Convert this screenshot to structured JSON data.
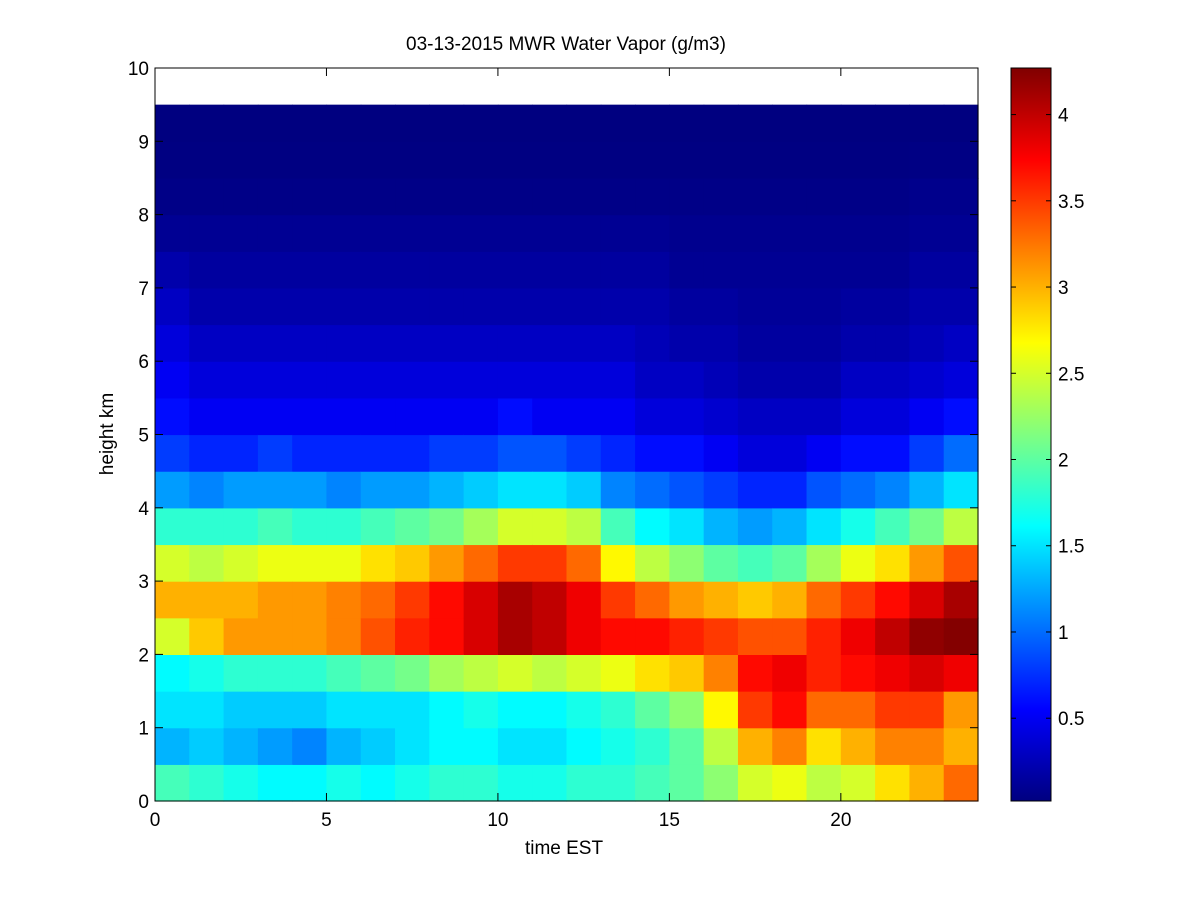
{
  "chart_data": {
    "type": "heatmap",
    "title": "03-13-2015 MWR Water Vapor (g/m3)",
    "xlabel": "time EST",
    "ylabel": "height km",
    "xlim": [
      0,
      24
    ],
    "ylim": [
      0,
      10
    ],
    "x_ticks": [
      0,
      5,
      10,
      15,
      20
    ],
    "y_ticks": [
      0,
      1,
      2,
      3,
      4,
      5,
      6,
      7,
      8,
      9,
      10
    ],
    "colorbar": {
      "colormap": "jet",
      "range": [
        0.02,
        4.27
      ],
      "ticks": [
        0.5,
        1,
        1.5,
        2,
        2.5,
        3,
        3.5,
        4
      ]
    },
    "grid": false,
    "time_hours": [
      0,
      1,
      2,
      3,
      4,
      5,
      6,
      7,
      8,
      9,
      10,
      11,
      12,
      13,
      14,
      15,
      16,
      17,
      18,
      19,
      20,
      21,
      22,
      23
    ],
    "heights_km": [
      0.25,
      0.75,
      1.25,
      1.75,
      2.25,
      2.75,
      3.25,
      3.75,
      4.25,
      4.75,
      5.25,
      5.75,
      6.25,
      6.75,
      7.25,
      7.75,
      8.25,
      8.75,
      9.25
    ],
    "values": [
      [
        1.9,
        1.3,
        1.5,
        1.6,
        2.5,
        3.0,
        2.5,
        1.8,
        1.2,
        0.8,
        0.6,
        0.5,
        0.4,
        0.3,
        0.2,
        0.1,
        0.05,
        0.03,
        0.02
      ],
      [
        1.8,
        1.4,
        1.5,
        1.7,
        2.9,
        3.0,
        2.4,
        1.8,
        1.1,
        0.7,
        0.5,
        0.4,
        0.3,
        0.2,
        0.15,
        0.1,
        0.05,
        0.03,
        0.02
      ],
      [
        1.7,
        1.3,
        1.4,
        1.8,
        3.1,
        3.0,
        2.5,
        1.8,
        1.2,
        0.7,
        0.5,
        0.4,
        0.3,
        0.2,
        0.15,
        0.1,
        0.05,
        0.03,
        0.02
      ],
      [
        1.6,
        1.2,
        1.4,
        1.8,
        3.1,
        3.1,
        2.6,
        1.9,
        1.2,
        0.8,
        0.5,
        0.4,
        0.3,
        0.2,
        0.15,
        0.1,
        0.05,
        0.03,
        0.02
      ],
      [
        1.6,
        1.1,
        1.4,
        1.8,
        3.1,
        3.1,
        2.6,
        1.8,
        1.2,
        0.7,
        0.5,
        0.4,
        0.3,
        0.2,
        0.15,
        0.1,
        0.05,
        0.03,
        0.02
      ],
      [
        1.7,
        1.3,
        1.5,
        1.9,
        3.2,
        3.2,
        2.6,
        1.8,
        1.1,
        0.7,
        0.5,
        0.4,
        0.3,
        0.2,
        0.15,
        0.1,
        0.05,
        0.03,
        0.02
      ],
      [
        1.6,
        1.4,
        1.5,
        2.0,
        3.4,
        3.3,
        2.8,
        1.9,
        1.2,
        0.7,
        0.5,
        0.4,
        0.3,
        0.2,
        0.15,
        0.1,
        0.05,
        0.03,
        0.02
      ],
      [
        1.7,
        1.5,
        1.5,
        2.1,
        3.6,
        3.5,
        2.9,
        2.0,
        1.2,
        0.7,
        0.5,
        0.4,
        0.3,
        0.2,
        0.15,
        0.1,
        0.05,
        0.03,
        0.02
      ],
      [
        1.8,
        1.6,
        1.6,
        2.3,
        3.7,
        3.7,
        3.1,
        2.1,
        1.3,
        0.8,
        0.5,
        0.4,
        0.3,
        0.2,
        0.15,
        0.1,
        0.05,
        0.03,
        0.02
      ],
      [
        1.8,
        1.6,
        1.7,
        2.4,
        3.9,
        3.9,
        3.3,
        2.3,
        1.4,
        0.8,
        0.5,
        0.4,
        0.3,
        0.2,
        0.15,
        0.1,
        0.05,
        0.03,
        0.02
      ],
      [
        1.7,
        1.5,
        1.6,
        2.5,
        4.1,
        4.1,
        3.5,
        2.5,
        1.5,
        0.9,
        0.6,
        0.4,
        0.3,
        0.2,
        0.15,
        0.1,
        0.05,
        0.03,
        0.02
      ],
      [
        1.7,
        1.5,
        1.6,
        2.4,
        4.0,
        4.0,
        3.5,
        2.5,
        1.5,
        0.9,
        0.5,
        0.4,
        0.3,
        0.2,
        0.15,
        0.1,
        0.05,
        0.03,
        0.02
      ],
      [
        1.8,
        1.6,
        1.7,
        2.5,
        3.8,
        3.8,
        3.3,
        2.4,
        1.4,
        0.8,
        0.5,
        0.4,
        0.3,
        0.2,
        0.15,
        0.1,
        0.05,
        0.03,
        0.02
      ],
      [
        1.8,
        1.7,
        1.8,
        2.6,
        3.7,
        3.5,
        2.7,
        1.9,
        1.1,
        0.7,
        0.5,
        0.4,
        0.3,
        0.2,
        0.15,
        0.1,
        0.05,
        0.03,
        0.02
      ],
      [
        1.9,
        1.8,
        2.0,
        2.8,
        3.7,
        3.3,
        2.4,
        1.6,
        1.0,
        0.6,
        0.4,
        0.3,
        0.25,
        0.2,
        0.15,
        0.1,
        0.05,
        0.03,
        0.02
      ],
      [
        2.0,
        2.0,
        2.2,
        2.9,
        3.6,
        3.1,
        2.2,
        1.5,
        0.9,
        0.6,
        0.4,
        0.3,
        0.2,
        0.15,
        0.1,
        0.08,
        0.05,
        0.03,
        0.02
      ],
      [
        2.2,
        2.4,
        2.7,
        3.2,
        3.5,
        3.0,
        2.0,
        1.3,
        0.8,
        0.5,
        0.35,
        0.25,
        0.2,
        0.15,
        0.1,
        0.08,
        0.05,
        0.03,
        0.02
      ],
      [
        2.5,
        3.0,
        3.5,
        3.7,
        3.4,
        2.9,
        1.9,
        1.2,
        0.7,
        0.4,
        0.3,
        0.2,
        0.15,
        0.12,
        0.1,
        0.08,
        0.05,
        0.03,
        0.02
      ],
      [
        2.6,
        3.2,
        3.7,
        3.8,
        3.4,
        3.0,
        2.0,
        1.3,
        0.7,
        0.4,
        0.3,
        0.2,
        0.15,
        0.12,
        0.1,
        0.08,
        0.05,
        0.03,
        0.02
      ],
      [
        2.4,
        2.8,
        3.3,
        3.6,
        3.6,
        3.3,
        2.3,
        1.5,
        0.9,
        0.5,
        0.3,
        0.2,
        0.15,
        0.12,
        0.1,
        0.08,
        0.05,
        0.03,
        0.02
      ],
      [
        2.5,
        3.0,
        3.3,
        3.7,
        3.8,
        3.5,
        2.6,
        1.7,
        1.0,
        0.6,
        0.4,
        0.3,
        0.2,
        0.15,
        0.1,
        0.08,
        0.05,
        0.03,
        0.02
      ],
      [
        2.8,
        3.2,
        3.5,
        3.8,
        4.0,
        3.7,
        2.8,
        1.9,
        1.1,
        0.6,
        0.4,
        0.3,
        0.2,
        0.15,
        0.1,
        0.08,
        0.05,
        0.03,
        0.02
      ],
      [
        3.0,
        3.2,
        3.5,
        3.9,
        4.2,
        3.9,
        3.1,
        2.1,
        1.3,
        0.8,
        0.5,
        0.35,
        0.25,
        0.2,
        0.15,
        0.1,
        0.07,
        0.04,
        0.02
      ],
      [
        3.3,
        3.0,
        3.1,
        3.8,
        4.25,
        4.1,
        3.4,
        2.4,
        1.5,
        1.0,
        0.6,
        0.4,
        0.3,
        0.2,
        0.15,
        0.1,
        0.07,
        0.04,
        0.02
      ]
    ]
  }
}
